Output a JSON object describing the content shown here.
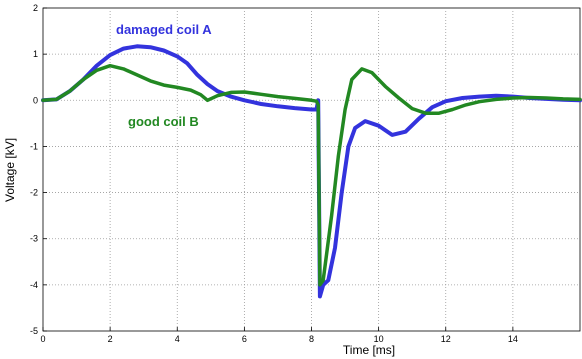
{
  "chart_data": {
    "type": "line",
    "title": "",
    "xlabel": "Time [ms]",
    "ylabel": "Voltage [kV]",
    "xlim": [
      0,
      16
    ],
    "ylim": [
      -5,
      2
    ],
    "xticks": [
      0,
      2,
      4,
      6,
      8,
      10,
      12,
      14
    ],
    "yticks": [
      2,
      1,
      0,
      -1,
      -2,
      -3,
      -4,
      -5
    ],
    "grid": true,
    "series": [
      {
        "name": "damaged coil A",
        "color": "#3333dd",
        "points": [
          [
            0,
            0
          ],
          [
            0.4,
            0.02
          ],
          [
            0.8,
            0.2
          ],
          [
            1.2,
            0.45
          ],
          [
            1.6,
            0.75
          ],
          [
            2.0,
            0.98
          ],
          [
            2.4,
            1.12
          ],
          [
            2.8,
            1.17
          ],
          [
            3.2,
            1.15
          ],
          [
            3.6,
            1.08
          ],
          [
            4.0,
            0.95
          ],
          [
            4.3,
            0.8
          ],
          [
            4.6,
            0.55
          ],
          [
            4.9,
            0.35
          ],
          [
            5.2,
            0.2
          ],
          [
            5.6,
            0.08
          ],
          [
            6.0,
            0.0
          ],
          [
            6.5,
            -0.08
          ],
          [
            7.0,
            -0.13
          ],
          [
            7.5,
            -0.17
          ],
          [
            8.0,
            -0.2
          ],
          [
            8.15,
            -0.2
          ],
          [
            8.2,
            0.0
          ],
          [
            8.25,
            -4.25
          ],
          [
            8.35,
            -4.0
          ],
          [
            8.5,
            -3.9
          ],
          [
            8.7,
            -3.2
          ],
          [
            8.9,
            -2.0
          ],
          [
            9.1,
            -1.0
          ],
          [
            9.3,
            -0.6
          ],
          [
            9.6,
            -0.45
          ],
          [
            10.0,
            -0.55
          ],
          [
            10.4,
            -0.75
          ],
          [
            10.8,
            -0.68
          ],
          [
            11.2,
            -0.4
          ],
          [
            11.6,
            -0.15
          ],
          [
            12.0,
            -0.02
          ],
          [
            12.5,
            0.05
          ],
          [
            13.0,
            0.08
          ],
          [
            13.5,
            0.1
          ],
          [
            14.0,
            0.08
          ],
          [
            14.5,
            0.05
          ],
          [
            15.0,
            0.03
          ],
          [
            15.5,
            0.01
          ],
          [
            16.0,
            0.0
          ]
        ]
      },
      {
        "name": "good coil B",
        "color": "#228822",
        "points": [
          [
            0,
            0
          ],
          [
            0.4,
            0.02
          ],
          [
            0.8,
            0.2
          ],
          [
            1.2,
            0.45
          ],
          [
            1.6,
            0.65
          ],
          [
            2.0,
            0.75
          ],
          [
            2.4,
            0.68
          ],
          [
            2.8,
            0.55
          ],
          [
            3.2,
            0.42
          ],
          [
            3.6,
            0.33
          ],
          [
            4.0,
            0.28
          ],
          [
            4.4,
            0.22
          ],
          [
            4.7,
            0.12
          ],
          [
            4.9,
            0.0
          ],
          [
            5.2,
            0.1
          ],
          [
            5.6,
            0.17
          ],
          [
            6.0,
            0.18
          ],
          [
            6.5,
            0.13
          ],
          [
            7.0,
            0.08
          ],
          [
            7.5,
            0.04
          ],
          [
            8.0,
            0.0
          ],
          [
            8.15,
            -0.02
          ],
          [
            8.2,
            -0.1
          ],
          [
            8.25,
            -4.0
          ],
          [
            8.35,
            -3.9
          ],
          [
            8.6,
            -2.5
          ],
          [
            8.8,
            -1.2
          ],
          [
            9.0,
            -0.2
          ],
          [
            9.2,
            0.45
          ],
          [
            9.5,
            0.68
          ],
          [
            9.8,
            0.6
          ],
          [
            10.2,
            0.3
          ],
          [
            10.6,
            0.05
          ],
          [
            11.0,
            -0.18
          ],
          [
            11.4,
            -0.28
          ],
          [
            11.8,
            -0.28
          ],
          [
            12.2,
            -0.2
          ],
          [
            12.6,
            -0.1
          ],
          [
            13.0,
            -0.03
          ],
          [
            13.5,
            0.02
          ],
          [
            14.0,
            0.05
          ],
          [
            14.5,
            0.06
          ],
          [
            15.0,
            0.05
          ],
          [
            15.5,
            0.03
          ],
          [
            16.0,
            0.02
          ]
        ]
      }
    ],
    "annotations": [
      {
        "text": "damaged coil A",
        "series": 0
      },
      {
        "text": "good coil B",
        "series": 1
      }
    ]
  }
}
